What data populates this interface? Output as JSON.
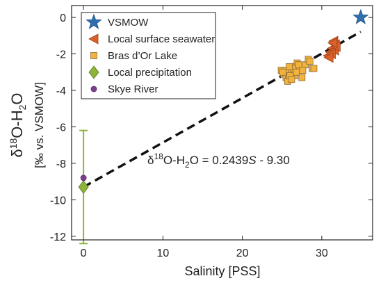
{
  "chart_data": {
    "type": "scatter",
    "xlabel": "Salinity [PSS]",
    "ylabel": [
      "δ",
      "18",
      "O-H",
      "2",
      "O"
    ],
    "ylabel2": "[‰ vs. VSMOW]",
    "xlim": [
      -1.5,
      36.4
    ],
    "ylim": [
      -12.2,
      0.65
    ],
    "xticks": [
      0,
      10,
      20,
      30
    ],
    "yticks": [
      0,
      -2,
      -4,
      -6,
      -8,
      -10,
      -12
    ],
    "legend": "upper left",
    "series": [
      {
        "name": "VSMOW",
        "marker": "star",
        "color": "#2f6fae",
        "x": [
          34.9
        ],
        "y": [
          0
        ]
      },
      {
        "name": "Local surface seawater",
        "marker": "triangle-left",
        "color": "#d9622b",
        "x": [
          31.5,
          31.7,
          31.3,
          31.1,
          30.8,
          31.6,
          31.2,
          31.8,
          31.4,
          30.9
        ],
        "y": [
          -1.3,
          -1.5,
          -1.7,
          -1.9,
          -2.1,
          -1.8,
          -2.0,
          -1.6,
          -1.4,
          -2.2
        ]
      },
      {
        "name": "Bras d’Or Lake",
        "marker": "square",
        "color": "#f2b33d",
        "x": [
          24.9,
          25.2,
          25.5,
          25.8,
          26.1,
          26.3,
          26.6,
          26.9,
          27.2,
          27.5,
          27.9,
          28.3,
          28.8,
          25.4,
          25.7,
          26.0,
          26.4,
          26.8,
          27.1,
          25.1,
          25.9,
          26.2,
          27.6,
          29.0,
          28.5
        ],
        "y": [
          -2.9,
          -3.1,
          -3.3,
          -3.4,
          -3.0,
          -2.7,
          -3.2,
          -2.5,
          -2.9,
          -3.3,
          -2.6,
          -2.3,
          -2.8,
          -2.9,
          -3.5,
          -3.2,
          -2.8,
          -3.0,
          -2.6,
          -3.0,
          -2.7,
          -3.4,
          -2.9,
          -2.8,
          -2.4
        ]
      },
      {
        "name": "Local precipitation",
        "marker": "diamond",
        "color": "#8db33a",
        "x": [
          0
        ],
        "y": [
          -9.3
        ],
        "yerr": [
          3.1
        ]
      },
      {
        "name": "Skye River",
        "marker": "circle",
        "color": "#7a3f8f",
        "x": [
          0
        ],
        "y": [
          -8.8
        ]
      }
    ],
    "fit": {
      "slope": 0.2439,
      "intercept": -9.3
    },
    "annotation": [
      "δ",
      "18",
      "O-H",
      "2",
      "O = 0.2439",
      "S",
      " - 9.30"
    ]
  }
}
